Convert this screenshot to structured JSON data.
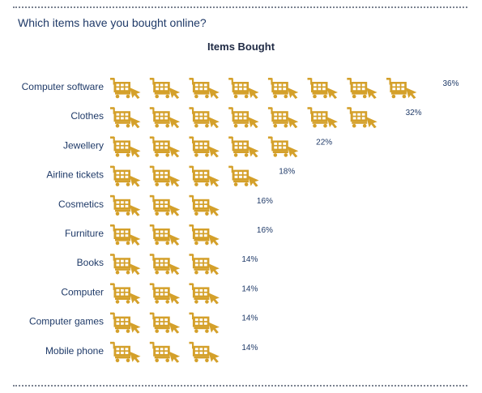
{
  "question": "Which items have you bought online?",
  "chart_data": {
    "type": "bar",
    "style": "pictograph",
    "icon": "shopping-cart-icon",
    "icon_color": "#d4a02a",
    "title": "Items Bought",
    "categories": [
      "Computer software",
      "Clothes",
      "Jewellery",
      "Airline tickets",
      "Cosmetics",
      "Furniture",
      "Books",
      "Computer",
      "Computer games",
      "Mobile phone"
    ],
    "values": [
      36,
      32,
      22,
      18,
      16,
      16,
      14,
      14,
      14,
      14
    ],
    "value_labels": [
      "36%",
      "32%",
      "22%",
      "18%",
      "16%",
      "16%",
      "14%",
      "14%",
      "14%",
      "14%"
    ],
    "percent_per_icon": 4.3
  }
}
